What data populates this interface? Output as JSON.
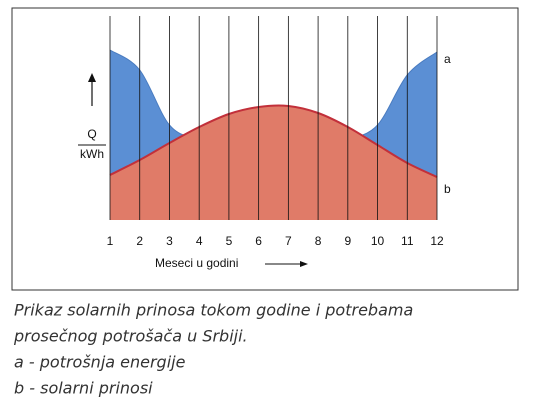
{
  "chart_data": {
    "type": "area",
    "categories": [
      "1",
      "2",
      "3",
      "4",
      "5",
      "6",
      "7",
      "8",
      "9",
      "10",
      "11",
      "12"
    ],
    "x_label": "Meseci u godini",
    "y_label_top": "Q",
    "y_label_bottom": "kWh",
    "ylim": [
      0,
      100
    ],
    "series": [
      {
        "name": "a",
        "color": "#5b8fd4",
        "values": [
          85,
          75,
          47.5,
          40,
          35,
          33,
          33,
          35,
          40,
          47.5,
          72.5,
          84
        ]
      },
      {
        "name": "b",
        "color": "#e07b68",
        "values": [
          22.5,
          30,
          38.5,
          46.5,
          53,
          56.5,
          57,
          53.5,
          46.5,
          37.5,
          28.5,
          21.5
        ]
      }
    ],
    "caption": [
      "Prikaz solarnih prinosa tokom godine i potrebama",
      "prosečnog potrošača u Srbiji.",
      "a - potrošnja energije",
      "b - solarni prinosi"
    ]
  }
}
